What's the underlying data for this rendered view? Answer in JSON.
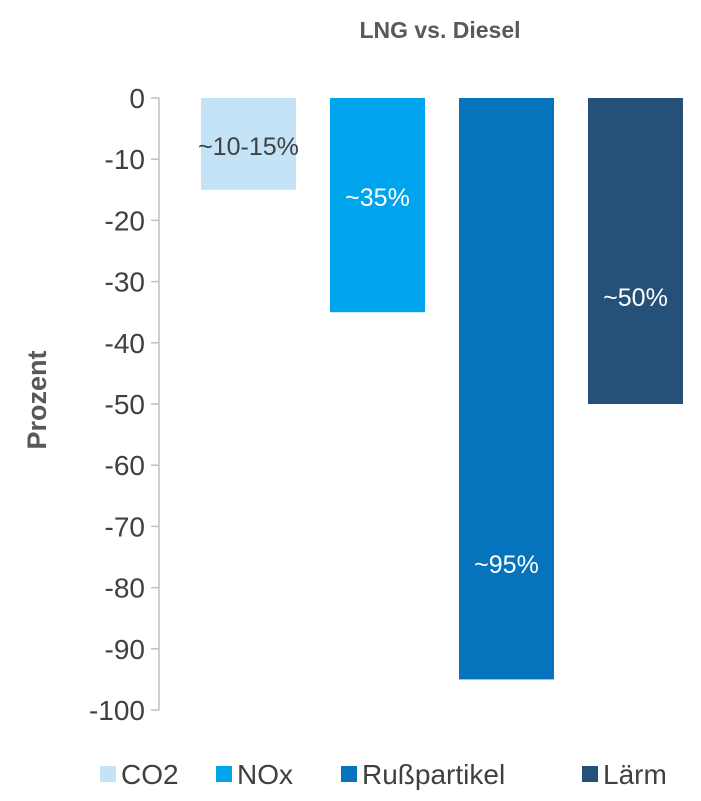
{
  "chart_data": {
    "type": "bar",
    "title": "LNG vs. Diesel",
    "ylabel": "Prozent",
    "xlabel": "",
    "ylim": [
      -100,
      0
    ],
    "yticks": [
      0,
      -10,
      -20,
      -30,
      -40,
      -50,
      -60,
      -70,
      -80,
      -90,
      -100
    ],
    "grid": false,
    "legend_position": "bottom",
    "series": [
      {
        "name": "CO2",
        "value": -15,
        "label": "~10-15%",
        "color": "#c5e3f7"
      },
      {
        "name": "NOx",
        "value": -35,
        "label": "~35%",
        "color": "#00a4ec"
      },
      {
        "name": "Rußpartikel",
        "value": -95,
        "label": "~95%",
        "color": "#0673bd"
      },
      {
        "name": "Lärm",
        "value": -50,
        "label": "~50%",
        "color": "#255179"
      }
    ]
  }
}
